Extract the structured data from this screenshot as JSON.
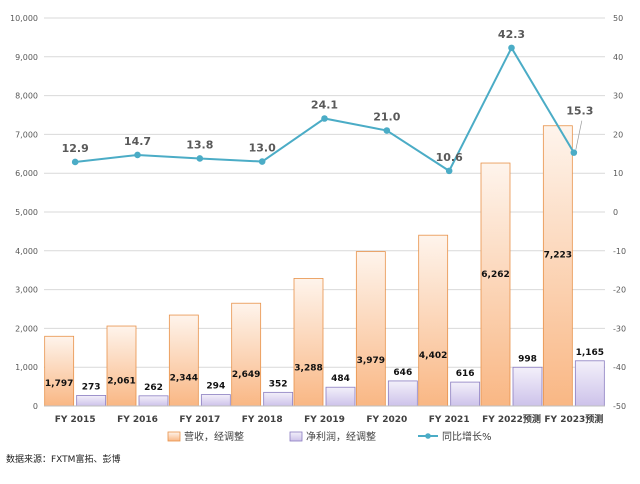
{
  "chart_data": {
    "type": "bar",
    "categories": [
      "FY 2015",
      "FY 2016",
      "FY 2017",
      "FY 2018",
      "FY 2019",
      "FY 2020",
      "FY 2021",
      "FY 2022预测",
      "FY 2023预测"
    ],
    "series": [
      {
        "name": "营收，经调整",
        "type": "bar",
        "axis": "left",
        "values": [
          1797,
          2061,
          2344,
          2649,
          3288,
          3979,
          4402,
          6262,
          7223
        ],
        "labels": [
          "1,797",
          "2,061",
          "2,344",
          "2,649",
          "3,288",
          "3,979",
          "4,402",
          "6,262",
          "7,223"
        ]
      },
      {
        "name": "净利润，经调整",
        "type": "bar",
        "axis": "left",
        "values": [
          273,
          262,
          294,
          352,
          484,
          646,
          616,
          998,
          1165
        ],
        "labels": [
          "273",
          "262",
          "294",
          "352",
          "484",
          "646",
          "616",
          "998",
          "1,165"
        ]
      },
      {
        "name": "同比增长%",
        "type": "line",
        "axis": "right",
        "values": [
          12.9,
          14.7,
          13.8,
          13.0,
          24.1,
          21.0,
          10.6,
          42.3,
          15.3
        ],
        "labels": [
          "12.9",
          "14.7",
          "13.8",
          "13.0",
          "24.1",
          "21.0",
          "10.6",
          "42.3",
          "15.3"
        ]
      }
    ],
    "y_left": {
      "min": 0,
      "max": 10000,
      "ticks": [
        "0",
        "1,000",
        "2,000",
        "3,000",
        "4,000",
        "5,000",
        "6,000",
        "7,000",
        "8,000",
        "9,000",
        "10,000"
      ]
    },
    "y_right": {
      "min": -50,
      "max": 50,
      "ticks": [
        "-50",
        "-40",
        "-30",
        "-20",
        "-10",
        "0",
        "10",
        "20",
        "30",
        "40",
        "50"
      ]
    },
    "grid": true,
    "legend_position": "bottom",
    "colors": {
      "revenue": "#fbc08f",
      "revenue_edge": "#e8924a",
      "profit": "#d6cdef",
      "profit_edge": "#8a7cc0",
      "line": "#4bacc6",
      "grid": "#d9d9d9",
      "axis_text": "#595959"
    }
  },
  "source": "数据来源：FXTM富拓、彭博"
}
